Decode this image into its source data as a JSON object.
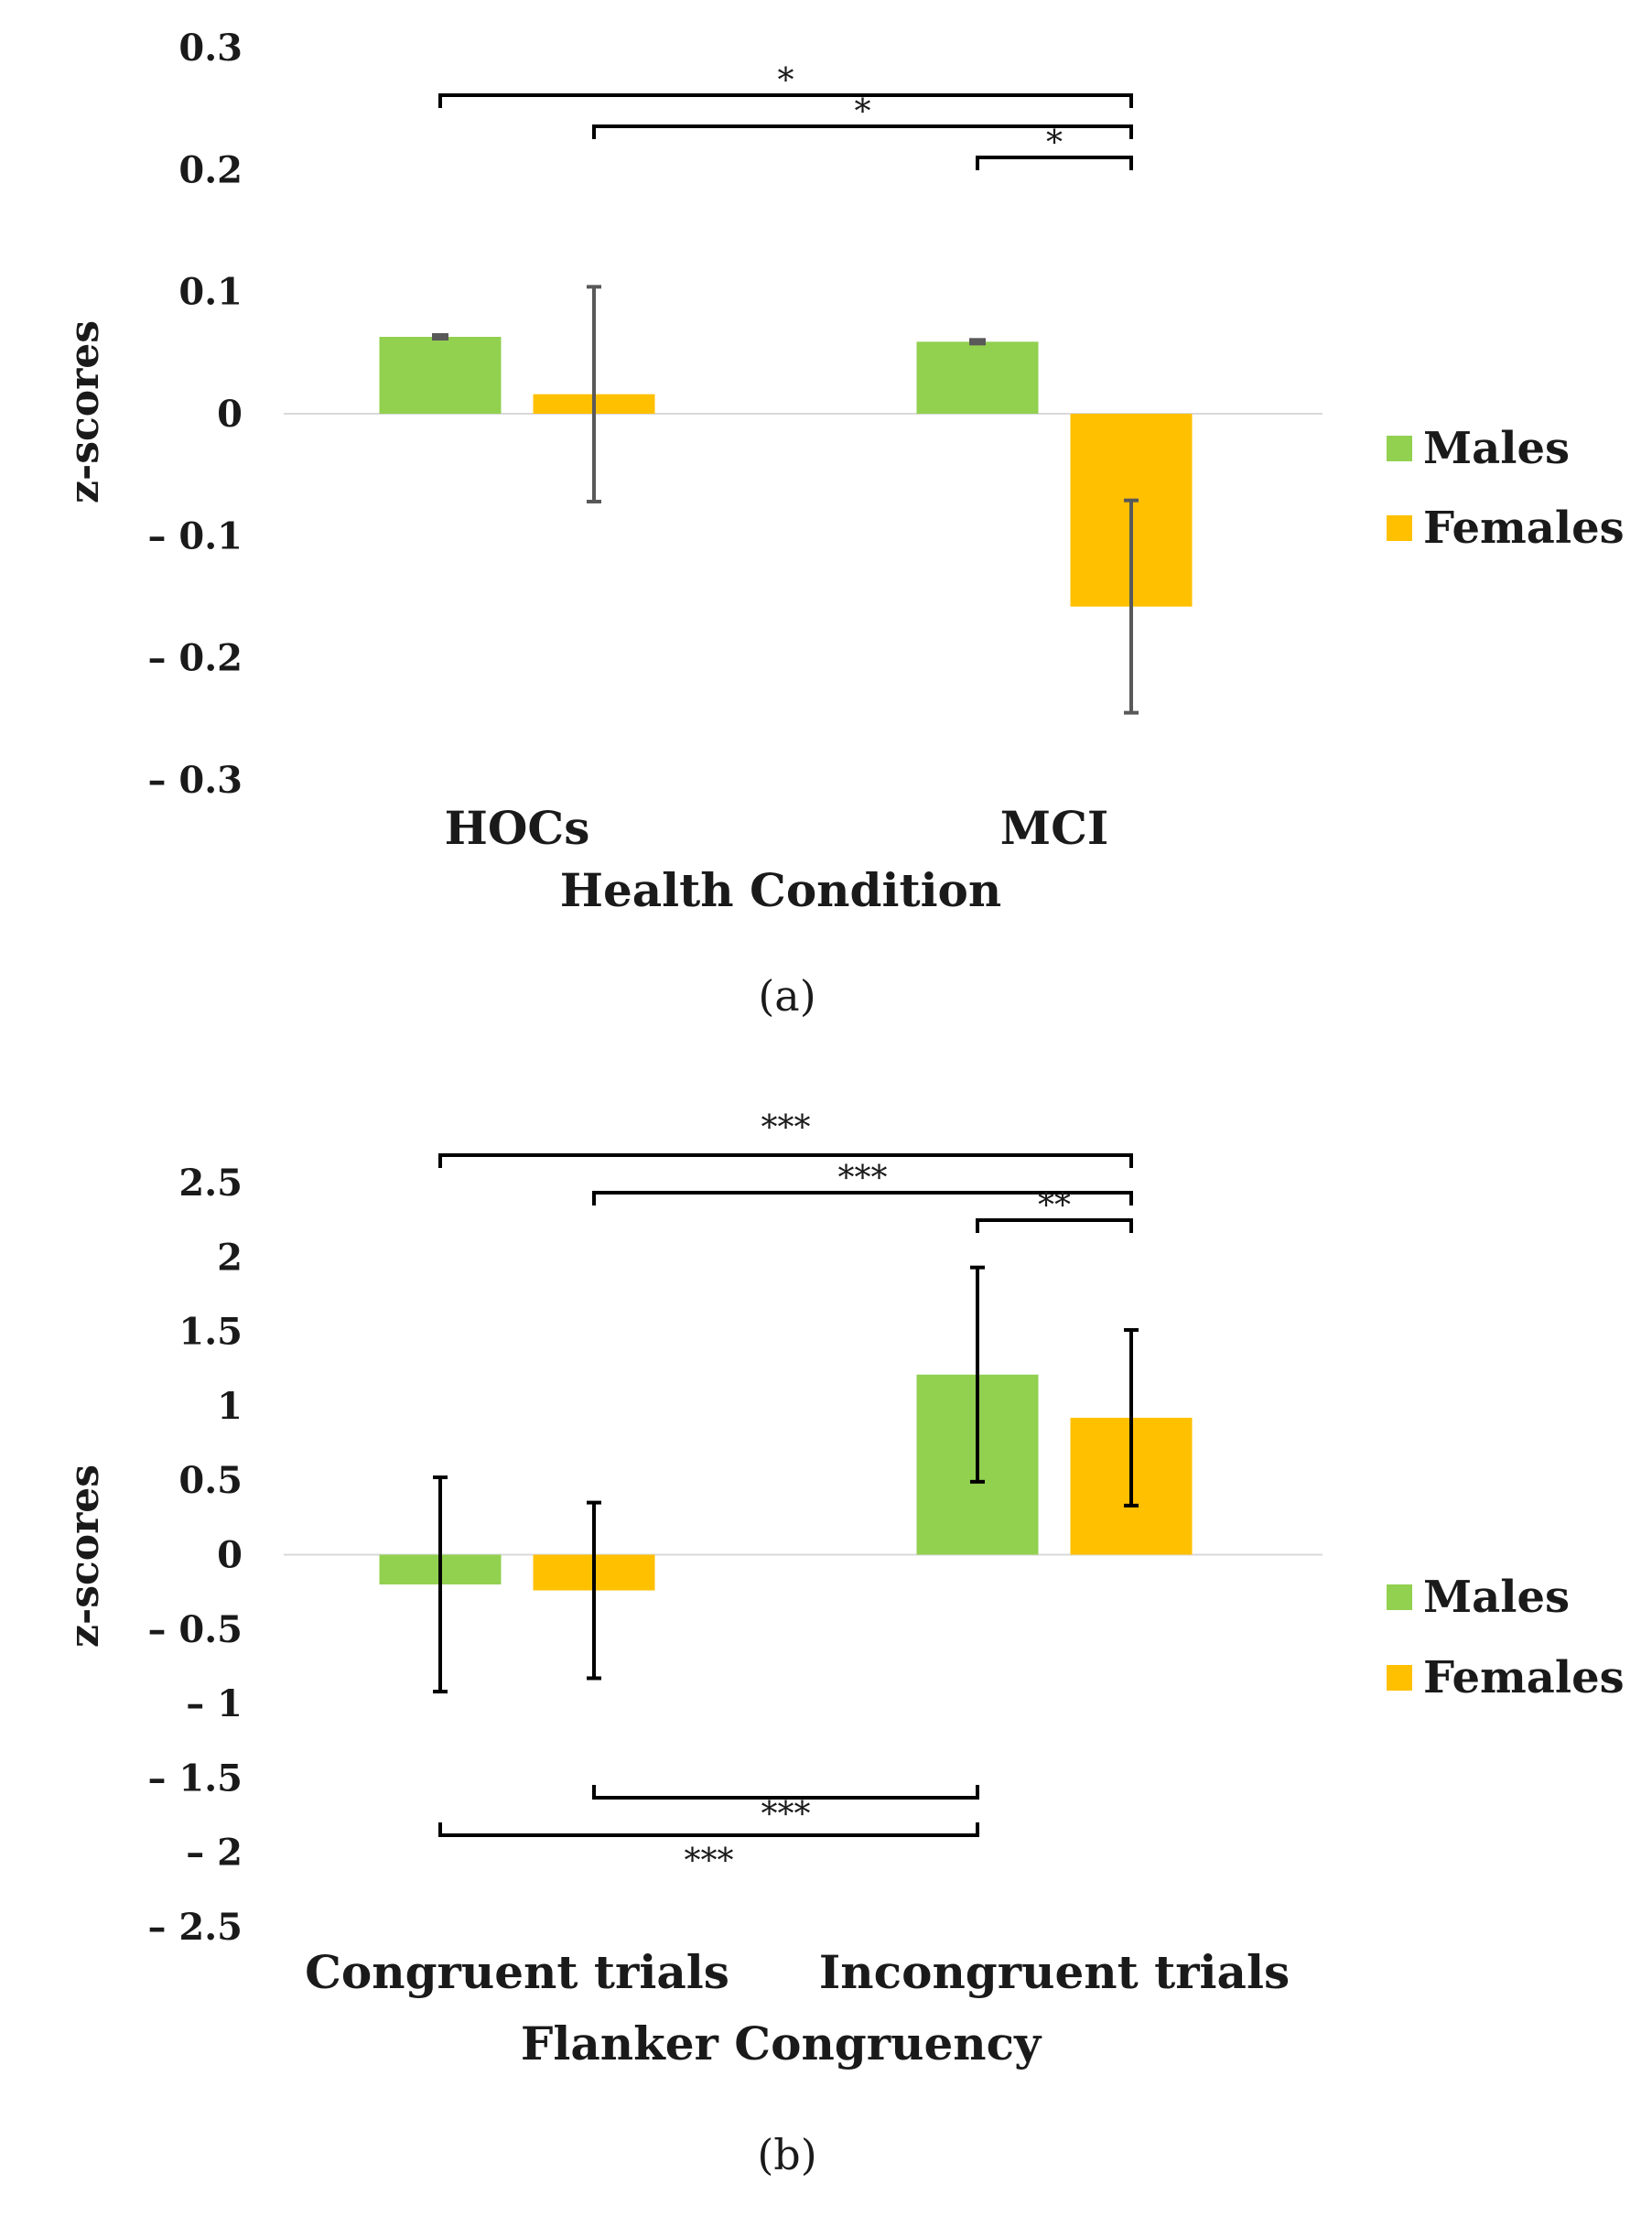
{
  "chart_data": [
    {
      "type": "bar",
      "caption": "(a)",
      "xlabel": "Health Condition",
      "ylabel": "z-scores",
      "ylim": [
        -0.3,
        0.3
      ],
      "yticks": [
        "0.3",
        "0.2",
        "0.1",
        "0",
        "– 0.1",
        "– 0.2",
        "– 0.3"
      ],
      "categories": [
        "HOCs",
        "MCI"
      ],
      "series": [
        {
          "name": "Males",
          "color": "#92d050",
          "values": [
            0.063,
            0.059
          ],
          "errors": [
            0.002,
            0.002
          ]
        },
        {
          "name": "Females",
          "color": "#ffc000",
          "values": [
            0.016,
            -0.158
          ],
          "errors": [
            0.088,
            0.087
          ]
        }
      ],
      "error_bar_color": "#595959",
      "legend_position": "right",
      "significance": [
        {
          "from": [
            0,
            0
          ],
          "to": [
            1,
            1
          ],
          "label": "*"
        },
        {
          "from": [
            0,
            1
          ],
          "to": [
            1,
            1
          ],
          "label": "*"
        },
        {
          "from": [
            1,
            0
          ],
          "to": [
            1,
            1
          ],
          "label": "*"
        }
      ]
    },
    {
      "type": "bar",
      "caption": "(b)",
      "xlabel": "Flanker Congruency",
      "ylabel": "z-scores",
      "ylim": [
        -2.5,
        2.5
      ],
      "yticks": [
        "2.5",
        "2",
        "1.5",
        "1",
        "0.5",
        "0",
        "– 0.5",
        "– 1",
        "– 1.5",
        "– 2",
        "– 2.5"
      ],
      "categories": [
        "Congruent trials",
        "Incongruent trials"
      ],
      "series": [
        {
          "name": "Males",
          "color": "#92d050",
          "values": [
            -0.2,
            1.21
          ],
          "errors": [
            0.72,
            0.72
          ]
        },
        {
          "name": "Females",
          "color": "#ffc000",
          "values": [
            -0.24,
            0.92
          ],
          "errors": [
            0.59,
            0.59
          ]
        }
      ],
      "error_bar_color": "#000000",
      "legend_position": "right",
      "significance": [
        {
          "from": [
            0,
            0
          ],
          "to": [
            1,
            1
          ],
          "label": "***",
          "side": "top"
        },
        {
          "from": [
            0,
            1
          ],
          "to": [
            1,
            1
          ],
          "label": "***",
          "side": "top"
        },
        {
          "from": [
            1,
            0
          ],
          "to": [
            1,
            1
          ],
          "label": "**",
          "side": "top"
        },
        {
          "from": [
            0,
            1
          ],
          "to": [
            1,
            0
          ],
          "label": "***",
          "side": "bottom"
        },
        {
          "from": [
            0,
            0
          ],
          "to": [
            1,
            0
          ],
          "label": "***",
          "side": "bottom"
        }
      ]
    }
  ]
}
